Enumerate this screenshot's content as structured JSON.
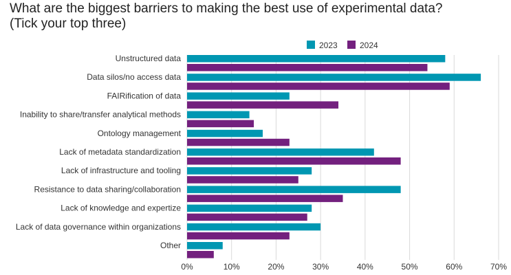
{
  "chart_data": {
    "type": "bar",
    "orientation": "horizontal",
    "title": "What are the biggest barriers to making the best use of experimental data?",
    "subtitle": "(Tick your top three)",
    "xlabel": "",
    "ylabel": "",
    "xlim": [
      0,
      70
    ],
    "x_ticks": [
      "0%",
      "10%",
      "20%",
      "30%",
      "40%",
      "50%",
      "60%",
      "70%"
    ],
    "x_tick_values": [
      0,
      10,
      20,
      30,
      40,
      50,
      60,
      70
    ],
    "grid": true,
    "legend_position": "top-right",
    "categories": [
      "Unstructured data",
      "Data silos/no access data",
      "FAIRification of data",
      "Inability to share/transfer analytical methods",
      "Ontology management",
      "Lack of metadata standardization",
      "Lack of infrastructure and tooling",
      "Resistance to data sharing/collaboration",
      "Lack of knowledge and expertize",
      "Lack of data governance within organizations",
      "Other"
    ],
    "series": [
      {
        "name": "2023",
        "color": "#0097B2",
        "values": [
          58,
          66,
          23,
          14,
          17,
          42,
          28,
          48,
          28,
          30,
          8
        ]
      },
      {
        "name": "2024",
        "color": "#73207E",
        "values": [
          54,
          59,
          34,
          15,
          23,
          48,
          25,
          35,
          27,
          23,
          6
        ]
      }
    ]
  }
}
